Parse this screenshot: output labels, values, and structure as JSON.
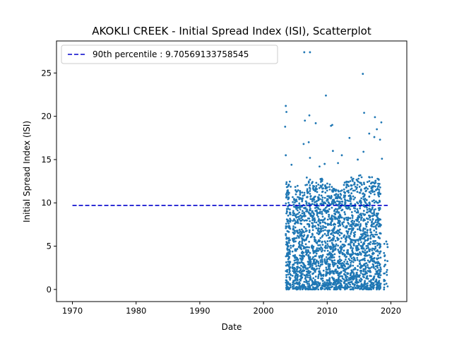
{
  "chart_data": {
    "type": "scatter",
    "title": "AKOKLI CREEK - Initial Spread Index (ISI), Scatterplot",
    "xlabel": "Date",
    "ylabel": "Initial Spread Index (ISI)",
    "xlim": [
      1967.5,
      2022.5
    ],
    "ylim": [
      -1.4,
      28.7
    ],
    "x_ticks": [
      1970,
      1980,
      1990,
      2000,
      2010,
      2020
    ],
    "y_ticks": [
      0,
      5,
      10,
      15,
      20,
      25
    ],
    "x_range_observed": [
      2003.5,
      2019.5
    ],
    "point_color": "#1f77b4",
    "reference_line": {
      "label": "90th percentile : 9.70569133758545",
      "value": 9.70569133758545,
      "x_range": [
        1970,
        2019.5
      ],
      "color": "#0000cc",
      "style": "dashed"
    },
    "legend": {
      "placement": "top-left"
    },
    "grid": false,
    "outliers": [
      {
        "x": 2003.5,
        "y": 21.2
      },
      {
        "x": 2003.6,
        "y": 20.5
      },
      {
        "x": 2003.4,
        "y": 18.8
      },
      {
        "x": 2006.4,
        "y": 27.4
      },
      {
        "x": 2007.3,
        "y": 27.4
      },
      {
        "x": 2009.8,
        "y": 22.4
      },
      {
        "x": 2015.6,
        "y": 24.9
      },
      {
        "x": 2007.2,
        "y": 20.1
      },
      {
        "x": 2006.5,
        "y": 19.5
      },
      {
        "x": 2008.2,
        "y": 19.2
      },
      {
        "x": 2010.6,
        "y": 18.9
      },
      {
        "x": 2010.8,
        "y": 19.0
      },
      {
        "x": 2015.8,
        "y": 20.4
      },
      {
        "x": 2017.5,
        "y": 19.9
      },
      {
        "x": 2018.5,
        "y": 19.3
      },
      {
        "x": 2017.8,
        "y": 18.5
      },
      {
        "x": 2016.6,
        "y": 18.0
      },
      {
        "x": 2017.4,
        "y": 17.6
      },
      {
        "x": 2018.3,
        "y": 17.3
      },
      {
        "x": 2013.5,
        "y": 17.5
      },
      {
        "x": 2007.1,
        "y": 17.0
      },
      {
        "x": 2006.3,
        "y": 16.8
      },
      {
        "x": 2010.9,
        "y": 16.0
      },
      {
        "x": 2015.7,
        "y": 15.9
      },
      {
        "x": 2012.3,
        "y": 15.5
      },
      {
        "x": 2003.5,
        "y": 15.5
      },
      {
        "x": 2007.3,
        "y": 15.2
      },
      {
        "x": 2014.8,
        "y": 15.0
      },
      {
        "x": 2018.6,
        "y": 15.1
      },
      {
        "x": 2008.8,
        "y": 14.2
      },
      {
        "x": 2011.7,
        "y": 14.6
      },
      {
        "x": 2004.4,
        "y": 14.4
      },
      {
        "x": 2009.6,
        "y": 14.5
      }
    ],
    "density_profile": {
      "description": "Remaining observations are seasonal clusters of daily values per year, denser near 0-8, spanning 0 to ~13",
      "years": [
        2004,
        2005,
        2006,
        2007,
        2008,
        2009,
        2010,
        2011,
        2012,
        2013,
        2014,
        2015,
        2016,
        2017,
        2018,
        2019
      ],
      "max_typical": [
        12.5,
        12.0,
        11.8,
        13.0,
        12.5,
        12.8,
        12.3,
        12.0,
        11.5,
        12.5,
        13.0,
        13.2,
        12.6,
        13.0,
        12.8,
        6.5
      ]
    }
  }
}
